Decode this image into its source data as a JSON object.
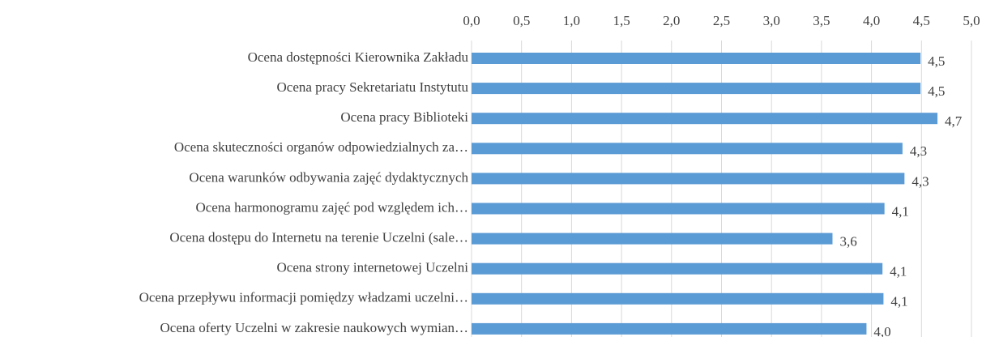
{
  "chart_data": {
    "type": "barh",
    "categories": [
      "Ocena dostępności Kierownika Zakładu",
      "Ocena pracy Sekretariatu Instytutu",
      "Ocena pracy Biblioteki",
      "Ocena skuteczności organów odpowiedzialnych za…",
      "Ocena warunków odbywania zajęć dydaktycznych",
      "Ocena harmonogramu zajęć pod względem ich…",
      "Ocena dostępu do Internetu na terenie Uczelni (sale…",
      "Ocena strony internetowej Uczelni",
      "Ocena przepływu informacji pomiędzy władzami uczelni…",
      "Ocena oferty Uczelni w zakresie naukowych wymian…"
    ],
    "values": [
      4.49,
      4.49,
      4.66,
      4.31,
      4.33,
      4.13,
      3.61,
      4.11,
      4.12,
      3.95
    ],
    "value_labels": [
      "4,5",
      "4,5",
      "4,7",
      "4,3",
      "4,3",
      "4,1",
      "3,6",
      "4,1",
      "4,1",
      "4,0"
    ],
    "color": "#5b9bd5",
    "xlim": [
      0,
      5
    ],
    "xticks": [
      {
        "value": 0,
        "label": "0,0"
      },
      {
        "value": 0.5,
        "label": "0,5"
      },
      {
        "value": 1,
        "label": "1,0"
      },
      {
        "value": 1.5,
        "label": "1,5"
      },
      {
        "value": 2,
        "label": "2,0"
      },
      {
        "value": 2.5,
        "label": "2,5"
      },
      {
        "value": 3,
        "label": "3,0"
      },
      {
        "value": 3.5,
        "label": "3,5"
      },
      {
        "value": 4,
        "label": "4,0"
      },
      {
        "value": 4.5,
        "label": "4,5"
      },
      {
        "value": 5,
        "label": "5,0"
      }
    ],
    "grid": true
  }
}
